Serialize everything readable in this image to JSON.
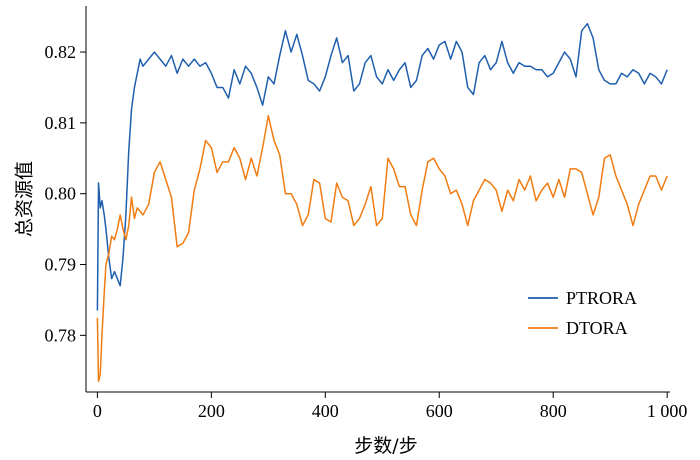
{
  "chart_data": {
    "type": "line",
    "title": "",
    "xlabel": "步数/步",
    "ylabel": "总资源值",
    "xlim": [
      -20,
      1005
    ],
    "ylim": [
      0.772,
      0.8265
    ],
    "xticks": [
      0,
      200,
      400,
      600,
      800,
      1000
    ],
    "xtick_labels": [
      "0",
      "200",
      "400",
      "600",
      "800",
      "1 000"
    ],
    "yticks": [
      0.78,
      0.79,
      0.8,
      0.81,
      0.82
    ],
    "ytick_labels": [
      "0.78",
      "0.79",
      "0.80",
      "0.81",
      "0.82"
    ],
    "grid": false,
    "legend_position": "lower-right",
    "series": [
      {
        "name": "PTRORA",
        "color": "#1f5fae",
        "x": [
          0,
          2,
          5,
          8,
          12,
          15,
          20,
          25,
          30,
          35,
          40,
          45,
          50,
          55,
          60,
          65,
          70,
          75,
          80,
          90,
          100,
          110,
          120,
          130,
          140,
          150,
          160,
          170,
          180,
          190,
          200,
          210,
          220,
          230,
          240,
          250,
          260,
          270,
          280,
          290,
          300,
          310,
          320,
          330,
          340,
          350,
          360,
          370,
          380,
          390,
          400,
          410,
          420,
          430,
          440,
          450,
          460,
          470,
          480,
          490,
          500,
          510,
          520,
          530,
          540,
          550,
          560,
          570,
          580,
          590,
          600,
          610,
          620,
          630,
          640,
          650,
          660,
          670,
          680,
          690,
          700,
          710,
          720,
          730,
          740,
          750,
          760,
          770,
          780,
          790,
          800,
          810,
          820,
          830,
          840,
          850,
          860,
          870,
          880,
          890,
          900,
          910,
          920,
          930,
          940,
          950,
          960,
          970,
          980,
          990,
          1000
        ],
        "values": [
          0.7835,
          0.8015,
          0.798,
          0.799,
          0.797,
          0.795,
          0.791,
          0.788,
          0.789,
          0.788,
          0.787,
          0.791,
          0.797,
          0.806,
          0.812,
          0.815,
          0.817,
          0.819,
          0.818,
          0.819,
          0.82,
          0.819,
          0.818,
          0.8195,
          0.817,
          0.819,
          0.818,
          0.819,
          0.818,
          0.8185,
          0.817,
          0.815,
          0.815,
          0.8135,
          0.8175,
          0.8155,
          0.818,
          0.817,
          0.815,
          0.8125,
          0.8165,
          0.8155,
          0.8195,
          0.823,
          0.82,
          0.8225,
          0.8195,
          0.816,
          0.8155,
          0.8145,
          0.8165,
          0.8195,
          0.822,
          0.8185,
          0.8195,
          0.8145,
          0.8155,
          0.8185,
          0.8195,
          0.8165,
          0.8155,
          0.8175,
          0.816,
          0.8175,
          0.8185,
          0.815,
          0.816,
          0.8195,
          0.8205,
          0.819,
          0.821,
          0.8215,
          0.819,
          0.8215,
          0.82,
          0.815,
          0.814,
          0.8185,
          0.8195,
          0.8175,
          0.8185,
          0.8215,
          0.8185,
          0.817,
          0.8185,
          0.818,
          0.818,
          0.8175,
          0.8175,
          0.8165,
          0.817,
          0.8185,
          0.82,
          0.819,
          0.8165,
          0.823,
          0.824,
          0.822,
          0.8175,
          0.816,
          0.8155,
          0.8155,
          0.817,
          0.8165,
          0.8175,
          0.817,
          0.8155,
          0.817,
          0.8165,
          0.8155,
          0.8175
        ]
      },
      {
        "name": "DTORA",
        "color": "#f07c12",
        "x": [
          0,
          2,
          5,
          8,
          12,
          15,
          20,
          25,
          30,
          35,
          40,
          45,
          50,
          55,
          60,
          65,
          70,
          75,
          80,
          90,
          100,
          110,
          120,
          130,
          140,
          150,
          160,
          170,
          180,
          190,
          200,
          210,
          220,
          230,
          240,
          250,
          260,
          270,
          280,
          290,
          300,
          310,
          320,
          330,
          340,
          350,
          360,
          370,
          380,
          390,
          400,
          410,
          420,
          430,
          440,
          450,
          460,
          470,
          480,
          490,
          500,
          510,
          520,
          530,
          540,
          550,
          560,
          570,
          580,
          590,
          600,
          610,
          620,
          630,
          640,
          650,
          660,
          670,
          680,
          690,
          700,
          710,
          720,
          730,
          740,
          750,
          760,
          770,
          780,
          790,
          800,
          810,
          820,
          830,
          840,
          850,
          860,
          870,
          880,
          890,
          900,
          910,
          920,
          930,
          940,
          950,
          960,
          970,
          980,
          990,
          1000
        ],
        "values": [
          0.7825,
          0.7735,
          0.7745,
          0.78,
          0.786,
          0.79,
          0.7915,
          0.794,
          0.7935,
          0.795,
          0.797,
          0.795,
          0.7935,
          0.7955,
          0.7995,
          0.7965,
          0.798,
          0.7975,
          0.797,
          0.7985,
          0.803,
          0.8045,
          0.802,
          0.7995,
          0.7925,
          0.793,
          0.7945,
          0.8005,
          0.8035,
          0.8075,
          0.8065,
          0.803,
          0.8045,
          0.8045,
          0.8065,
          0.805,
          0.802,
          0.805,
          0.8025,
          0.8065,
          0.811,
          0.8075,
          0.8055,
          0.8,
          0.8,
          0.7985,
          0.7955,
          0.797,
          0.802,
          0.8015,
          0.7965,
          0.796,
          0.8015,
          0.7995,
          0.799,
          0.7955,
          0.7965,
          0.7985,
          0.801,
          0.7955,
          0.7965,
          0.805,
          0.8035,
          0.801,
          0.801,
          0.797,
          0.7955,
          0.8005,
          0.8045,
          0.805,
          0.8035,
          0.8025,
          0.8,
          0.8005,
          0.7985,
          0.7955,
          0.799,
          0.8005,
          0.802,
          0.8015,
          0.8005,
          0.7975,
          0.8005,
          0.799,
          0.802,
          0.8005,
          0.8025,
          0.799,
          0.8005,
          0.8015,
          0.7995,
          0.802,
          0.7995,
          0.8035,
          0.8035,
          0.803,
          0.8,
          0.797,
          0.7995,
          0.805,
          0.8055,
          0.8025,
          0.8005,
          0.7985,
          0.7955,
          0.7985,
          0.8005,
          0.8025,
          0.8025,
          0.8005,
          0.8025
        ]
      }
    ]
  }
}
